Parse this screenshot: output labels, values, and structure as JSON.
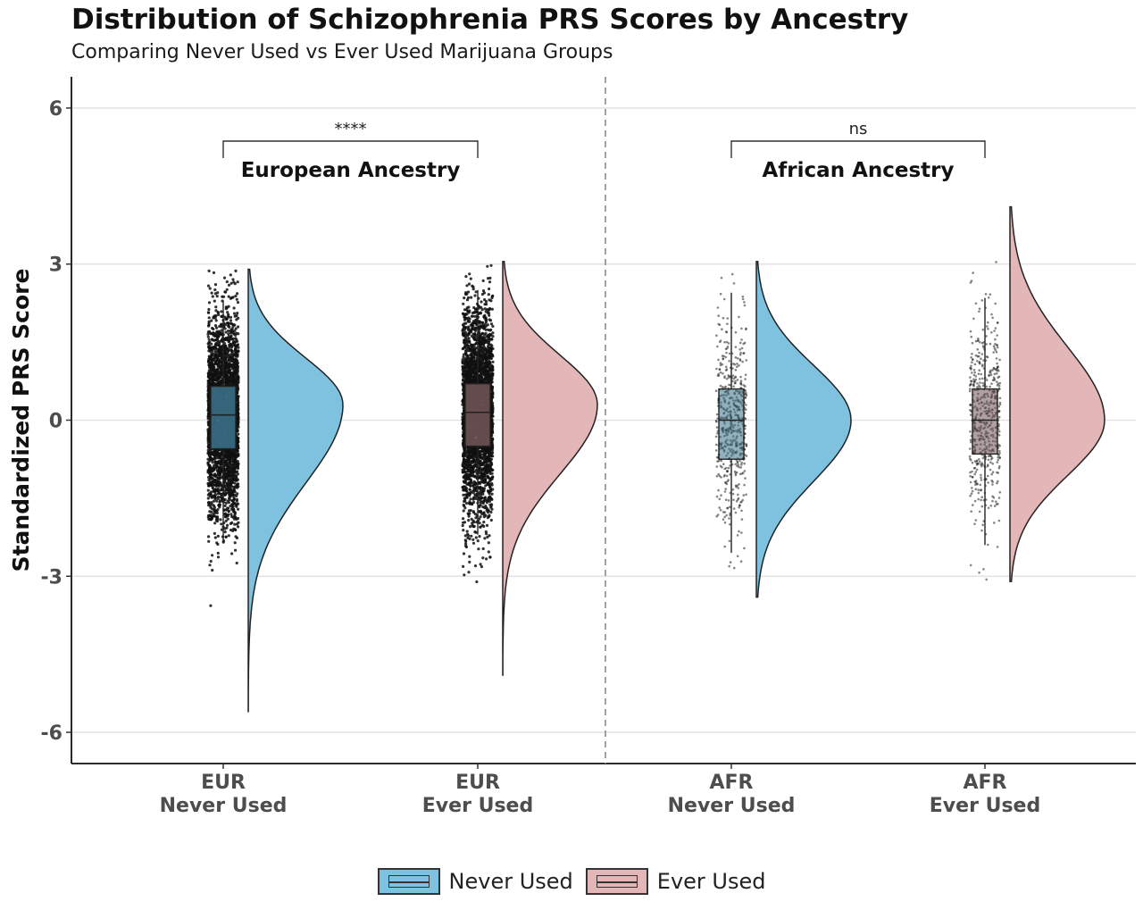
{
  "title": "Distribution of Schizophrenia PRS Scores by Ancestry",
  "subtitle": "Comparing Never Used vs Ever Used Marijuana Groups",
  "colors": {
    "never_used": "#7ec2e0",
    "ever_used": "#e3b6b8",
    "never_box": "#3a6f86",
    "ever_box": "#6e5254"
  },
  "chart_data": {
    "type": "raincloud",
    "ylabel": "Standardized PRS Score",
    "yticks": [
      6,
      3,
      0,
      -3,
      -6
    ],
    "ylim": [
      -6.6,
      6.6
    ],
    "grid": true,
    "legend_position": "bottom",
    "legend": [
      "Never Used",
      "Ever Used"
    ],
    "panels": [
      {
        "label": "European Ancestry",
        "significance": "****"
      },
      {
        "label": "African Ancestry",
        "significance": "ns"
      }
    ],
    "categories": [
      {
        "line1": "EUR",
        "line2": "Never Used",
        "group": "Never Used",
        "panel": 0,
        "n_points": "dense",
        "box": {
          "q1": -0.55,
          "median": 0.1,
          "q3": 0.65,
          "whisker_low": -2.3,
          "whisker_high": 2.3
        },
        "points_range": [
          -5.6,
          2.9
        ],
        "density_range": [
          -5.6,
          2.9
        ],
        "density_peak": 0.3
      },
      {
        "line1": "EUR",
        "line2": "Ever Used",
        "group": "Ever Used",
        "panel": 0,
        "n_points": "dense",
        "box": {
          "q1": -0.5,
          "median": 0.15,
          "q3": 0.7,
          "whisker_low": -2.2,
          "whisker_high": 2.5
        },
        "points_range": [
          -4.9,
          3.0
        ],
        "density_range": [
          -4.9,
          3.05
        ],
        "density_peak": 0.3
      },
      {
        "line1": "AFR",
        "line2": "Never Used",
        "group": "Never Used",
        "panel": 1,
        "n_points": "sparse",
        "box": {
          "q1": -0.75,
          "median": 0.0,
          "q3": 0.6,
          "whisker_low": -2.55,
          "whisker_high": 2.45
        },
        "points_range": [
          -3.4,
          3.0
        ],
        "density_range": [
          -3.4,
          3.05
        ],
        "density_peak": 0.0
      },
      {
        "line1": "AFR",
        "line2": "Ever Used",
        "group": "Ever Used",
        "panel": 1,
        "n_points": "sparse",
        "box": {
          "q1": -0.65,
          "median": 0.0,
          "q3": 0.6,
          "whisker_low": -2.4,
          "whisker_high": 2.35
        },
        "points_range": [
          -3.1,
          4.1
        ],
        "density_range": [
          -3.1,
          4.1
        ],
        "density_peak": 0.0
      }
    ]
  }
}
